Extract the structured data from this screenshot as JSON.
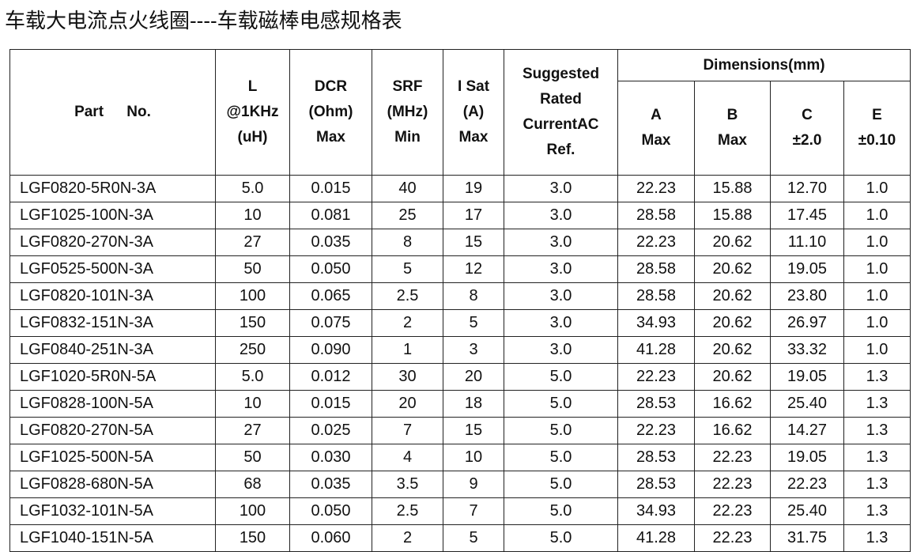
{
  "title": "车载大电流点火线圈----车载磁棒电感规格表",
  "table": {
    "group_header": "Dimensions(mm)",
    "columns": [
      [
        "Part No."
      ],
      [
        "L",
        "@1KHz",
        "(uH)"
      ],
      [
        "DCR",
        "(Ohm)",
        "Max"
      ],
      [
        "SRF",
        "(MHz)",
        "Min"
      ],
      [
        "I Sat",
        "(A)",
        "Max"
      ],
      [
        "Suggested",
        "Rated",
        "CurrentAC",
        "Ref."
      ],
      [
        "A",
        "Max"
      ],
      [
        "B",
        "Max"
      ],
      [
        "C",
        "±2.0"
      ],
      [
        "E",
        "±0.10"
      ]
    ],
    "rows": [
      [
        "LGF0820-5R0N-3A",
        "5.0",
        "0.015",
        "40",
        "19",
        "3.0",
        "22.23",
        "15.88",
        "12.70",
        "1.0"
      ],
      [
        "LGF1025-100N-3A",
        "10",
        "0.081",
        "25",
        "17",
        "3.0",
        "28.58",
        "15.88",
        "17.45",
        "1.0"
      ],
      [
        "LGF0820-270N-3A",
        "27",
        "0.035",
        "8",
        "15",
        "3.0",
        "22.23",
        "20.62",
        "11.10",
        "1.0"
      ],
      [
        "LGF0525-500N-3A",
        "50",
        "0.050",
        "5",
        "12",
        "3.0",
        "28.58",
        "20.62",
        "19.05",
        "1.0"
      ],
      [
        "LGF0820-101N-3A",
        "100",
        "0.065",
        "2.5",
        "8",
        "3.0",
        "28.58",
        "20.62",
        "23.80",
        "1.0"
      ],
      [
        "LGF0832-151N-3A",
        "150",
        "0.075",
        "2",
        "5",
        "3.0",
        "34.93",
        "20.62",
        "26.97",
        "1.0"
      ],
      [
        "LGF0840-251N-3A",
        "250",
        "0.090",
        "1",
        "3",
        "3.0",
        "41.28",
        "20.62",
        "33.32",
        "1.0"
      ],
      [
        "LGF1020-5R0N-5A",
        "5.0",
        "0.012",
        "30",
        "20",
        "5.0",
        "22.23",
        "20.62",
        "19.05",
        "1.3"
      ],
      [
        "LGF0828-100N-5A",
        "10",
        "0.015",
        "20",
        "18",
        "5.0",
        "28.53",
        "16.62",
        "25.40",
        "1.3"
      ],
      [
        "LGF0820-270N-5A",
        "27",
        "0.025",
        "7",
        "15",
        "5.0",
        "22.23",
        "16.62",
        "14.27",
        "1.3"
      ],
      [
        "LGF1025-500N-5A",
        "50",
        "0.030",
        "4",
        "10",
        "5.0",
        "28.53",
        "22.23",
        "19.05",
        "1.3"
      ],
      [
        "LGF0828-680N-5A",
        "68",
        "0.035",
        "3.5",
        "9",
        "5.0",
        "28.53",
        "22.23",
        "22.23",
        "1.3"
      ],
      [
        "LGF1032-101N-5A",
        "100",
        "0.050",
        "2.5",
        "7",
        "5.0",
        "34.93",
        "22.23",
        "25.40",
        "1.3"
      ],
      [
        "LGF1040-151N-5A",
        "150",
        "0.060",
        "2",
        "5",
        "5.0",
        "41.28",
        "22.23",
        "31.75",
        "1.3"
      ]
    ]
  }
}
